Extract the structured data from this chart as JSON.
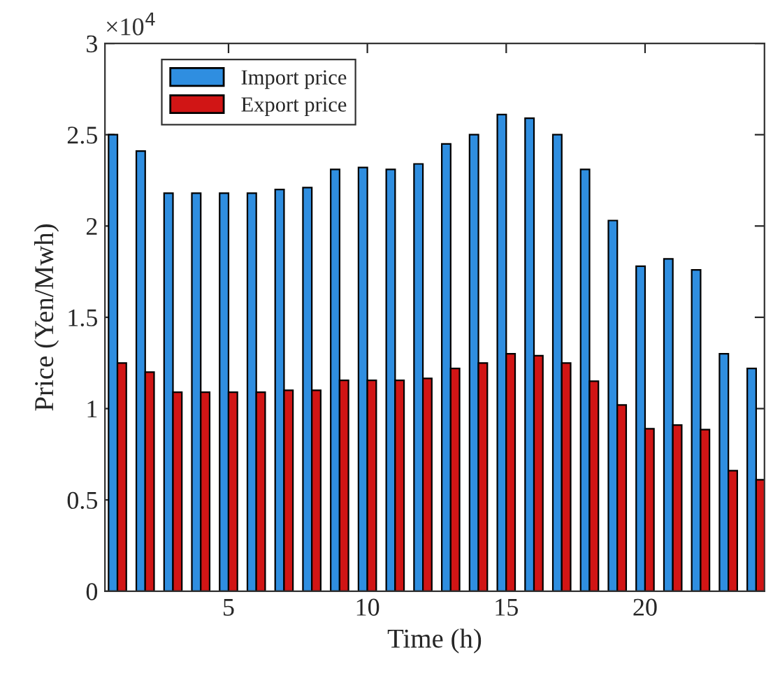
{
  "chart_data": {
    "type": "bar",
    "xlabel": "Time (h)",
    "ylabel": "Price (Yen/Mwh)",
    "x": [
      1,
      2,
      3,
      4,
      5,
      6,
      7,
      8,
      9,
      10,
      11,
      12,
      13,
      14,
      15,
      16,
      17,
      18,
      19,
      20,
      21,
      22,
      23,
      24
    ],
    "series": [
      {
        "name": "Import price",
        "color": "#2f8ee0",
        "values": [
          2.5,
          2.41,
          2.18,
          2.18,
          2.18,
          2.18,
          2.2,
          2.21,
          2.31,
          2.32,
          2.31,
          2.34,
          2.45,
          2.5,
          2.61,
          2.59,
          2.5,
          2.31,
          2.03,
          1.78,
          1.82,
          1.76,
          1.3,
          1.22
        ]
      },
      {
        "name": "Export price",
        "color": "#d11515",
        "values": [
          1.25,
          1.2,
          1.09,
          1.09,
          1.09,
          1.09,
          1.1,
          1.1,
          1.155,
          1.155,
          1.155,
          1.165,
          1.22,
          1.25,
          1.3,
          1.29,
          1.25,
          1.15,
          1.02,
          0.89,
          0.91,
          0.885,
          0.66,
          0.61
        ]
      }
    ],
    "xlim": [
      0.55,
      24.3
    ],
    "xticks": [
      5,
      10,
      15,
      20
    ],
    "ylim": [
      0,
      3
    ],
    "yticks": [
      0,
      0.5,
      1,
      1.5,
      2,
      2.5,
      3
    ],
    "annotations": [
      "×10$^{4}$"
    ],
    "legend": "top left",
    "grid": false
  }
}
